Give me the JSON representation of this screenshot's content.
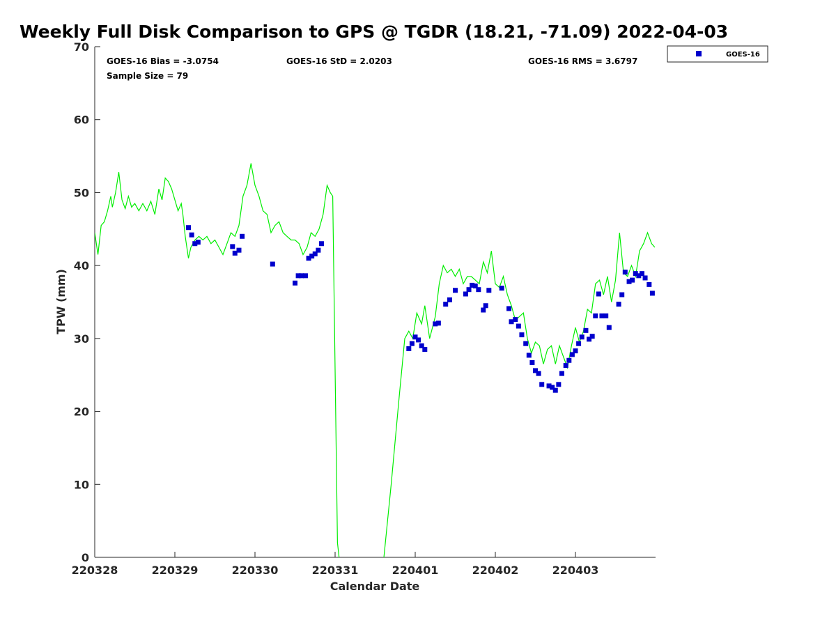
{
  "chart_data": {
    "type": "scatter",
    "title": "Weekly Full Disk Comparison to GPS @ TGDR (18.21, -71.09) 2022-04-03",
    "xlabel": "Calendar Date",
    "ylabel": "TPW (mm)",
    "xlim": [
      0,
      7
    ],
    "ylim": [
      0,
      70
    ],
    "x_unit": "days from 220328 (x=0 at 220328)",
    "x_ticks": [
      {
        "value": 0,
        "label": "220328"
      },
      {
        "value": 1,
        "label": "220329"
      },
      {
        "value": 2,
        "label": "220330"
      },
      {
        "value": 3,
        "label": "220331"
      },
      {
        "value": 4,
        "label": "220401"
      },
      {
        "value": 5,
        "label": "220402"
      },
      {
        "value": 6,
        "label": "220403"
      }
    ],
    "y_ticks": [
      0,
      10,
      20,
      30,
      40,
      50,
      60,
      70
    ],
    "grid": false,
    "legend": {
      "position": "top-right-outside",
      "entries": [
        "GOES-16"
      ]
    },
    "stats": {
      "bias": "GOES-16 Bias = -3.0754",
      "std": "GOES-16 StD = 2.0203",
      "rms": "GOES-16 RMS = 3.6797",
      "sample": "Sample Size = 79"
    },
    "series": [
      {
        "name": "GPS",
        "kind": "line",
        "color": "#00ee00",
        "points": [
          [
            0.0,
            44.5
          ],
          [
            0.04,
            41.5
          ],
          [
            0.08,
            45.5
          ],
          [
            0.12,
            46.0
          ],
          [
            0.16,
            47.5
          ],
          [
            0.2,
            49.5
          ],
          [
            0.22,
            48.0
          ],
          [
            0.26,
            50.0
          ],
          [
            0.3,
            52.8
          ],
          [
            0.34,
            49.0
          ],
          [
            0.38,
            47.8
          ],
          [
            0.42,
            49.5
          ],
          [
            0.46,
            48.0
          ],
          [
            0.5,
            48.5
          ],
          [
            0.55,
            47.5
          ],
          [
            0.6,
            48.5
          ],
          [
            0.65,
            47.5
          ],
          [
            0.7,
            48.8
          ],
          [
            0.75,
            47.0
          ],
          [
            0.8,
            50.5
          ],
          [
            0.84,
            49.0
          ],
          [
            0.88,
            52.0
          ],
          [
            0.92,
            51.5
          ],
          [
            0.96,
            50.5
          ],
          [
            1.0,
            49.0
          ],
          [
            1.04,
            47.5
          ],
          [
            1.08,
            48.5
          ],
          [
            1.1,
            47.0
          ],
          [
            1.13,
            44.0
          ],
          [
            1.17,
            41.0
          ],
          [
            1.2,
            42.5
          ],
          [
            1.25,
            43.5
          ],
          [
            1.3,
            44.0
          ],
          [
            1.35,
            43.5
          ],
          [
            1.4,
            44.0
          ],
          [
            1.45,
            43.0
          ],
          [
            1.5,
            43.5
          ],
          [
            1.55,
            42.5
          ],
          [
            1.6,
            41.5
          ],
          [
            1.65,
            43.0
          ],
          [
            1.7,
            44.5
          ],
          [
            1.75,
            44.0
          ],
          [
            1.8,
            45.5
          ],
          [
            1.85,
            49.5
          ],
          [
            1.9,
            51.0
          ],
          [
            1.95,
            54.0
          ],
          [
            2.0,
            51.0
          ],
          [
            2.05,
            49.5
          ],
          [
            2.1,
            47.5
          ],
          [
            2.15,
            47.0
          ],
          [
            2.2,
            44.5
          ],
          [
            2.25,
            45.5
          ],
          [
            2.3,
            46.0
          ],
          [
            2.35,
            44.5
          ],
          [
            2.4,
            44.0
          ],
          [
            2.45,
            43.5
          ],
          [
            2.5,
            43.5
          ],
          [
            2.55,
            43.0
          ],
          [
            2.6,
            41.5
          ],
          [
            2.65,
            42.5
          ],
          [
            2.7,
            44.5
          ],
          [
            2.75,
            44.0
          ],
          [
            2.8,
            45.0
          ],
          [
            2.85,
            47.0
          ],
          [
            2.9,
            51.0
          ],
          [
            2.94,
            50.0
          ],
          [
            2.97,
            49.5
          ],
          [
            3.03,
            2.0
          ],
          [
            3.06,
            -1.0
          ],
          [
            3.6,
            -1.0
          ],
          [
            3.7,
            10.0
          ],
          [
            3.8,
            22.0
          ],
          [
            3.87,
            30.0
          ],
          [
            3.92,
            31.0
          ],
          [
            3.97,
            30.0
          ],
          [
            4.02,
            33.5
          ],
          [
            4.08,
            32.0
          ],
          [
            4.12,
            34.5
          ],
          [
            4.18,
            30.0
          ],
          [
            4.25,
            33.0
          ],
          [
            4.3,
            37.5
          ],
          [
            4.35,
            40.0
          ],
          [
            4.4,
            39.0
          ],
          [
            4.45,
            39.5
          ],
          [
            4.5,
            38.5
          ],
          [
            4.55,
            39.5
          ],
          [
            4.6,
            37.5
          ],
          [
            4.65,
            38.5
          ],
          [
            4.7,
            38.5
          ],
          [
            4.75,
            38.0
          ],
          [
            4.8,
            37.5
          ],
          [
            4.85,
            40.5
          ],
          [
            4.9,
            39.0
          ],
          [
            4.95,
            42.0
          ],
          [
            5.0,
            37.5
          ],
          [
            5.05,
            37.0
          ],
          [
            5.1,
            38.5
          ],
          [
            5.15,
            36.0
          ],
          [
            5.2,
            34.5
          ],
          [
            5.25,
            32.5
          ],
          [
            5.3,
            33.0
          ],
          [
            5.35,
            33.5
          ],
          [
            5.4,
            30.0
          ],
          [
            5.45,
            28.0
          ],
          [
            5.5,
            29.5
          ],
          [
            5.55,
            29.0
          ],
          [
            5.6,
            26.5
          ],
          [
            5.65,
            28.5
          ],
          [
            5.7,
            29.0
          ],
          [
            5.75,
            26.5
          ],
          [
            5.8,
            29.0
          ],
          [
            5.85,
            27.5
          ],
          [
            5.9,
            26.0
          ],
          [
            5.95,
            29.0
          ],
          [
            6.0,
            31.5
          ],
          [
            6.05,
            29.5
          ],
          [
            6.1,
            31.0
          ],
          [
            6.15,
            34.0
          ],
          [
            6.2,
            33.5
          ],
          [
            6.25,
            37.5
          ],
          [
            6.3,
            38.0
          ],
          [
            6.35,
            36.0
          ],
          [
            6.4,
            38.5
          ],
          [
            6.45,
            35.0
          ],
          [
            6.5,
            38.0
          ],
          [
            6.55,
            44.5
          ],
          [
            6.6,
            39.0
          ],
          [
            6.65,
            38.5
          ],
          [
            6.7,
            40.0
          ],
          [
            6.75,
            38.5
          ],
          [
            6.8,
            42.0
          ],
          [
            6.85,
            43.0
          ],
          [
            6.9,
            44.5
          ],
          [
            6.95,
            43.0
          ],
          [
            6.99,
            42.5
          ]
        ]
      },
      {
        "name": "GOES-16",
        "kind": "scatter",
        "color": "#0000cc",
        "points": [
          [
            1.17,
            45.2
          ],
          [
            1.21,
            44.2
          ],
          [
            1.25,
            43.0
          ],
          [
            1.29,
            43.2
          ],
          [
            1.72,
            42.6
          ],
          [
            1.75,
            41.7
          ],
          [
            1.8,
            42.1
          ],
          [
            1.84,
            44.0
          ],
          [
            2.22,
            40.2
          ],
          [
            2.5,
            37.6
          ],
          [
            2.54,
            38.6
          ],
          [
            2.58,
            38.6
          ],
          [
            2.63,
            38.6
          ],
          [
            2.67,
            41.0
          ],
          [
            2.71,
            41.3
          ],
          [
            2.75,
            41.6
          ],
          [
            2.79,
            42.1
          ],
          [
            2.83,
            43.0
          ],
          [
            3.92,
            28.6
          ],
          [
            3.96,
            29.3
          ],
          [
            4.0,
            30.2
          ],
          [
            4.04,
            29.8
          ],
          [
            4.08,
            29.0
          ],
          [
            4.12,
            28.5
          ],
          [
            4.25,
            32.0
          ],
          [
            4.29,
            32.1
          ],
          [
            4.38,
            34.7
          ],
          [
            4.43,
            35.3
          ],
          [
            4.5,
            36.6
          ],
          [
            4.63,
            36.1
          ],
          [
            4.67,
            36.7
          ],
          [
            4.71,
            37.3
          ],
          [
            4.75,
            37.2
          ],
          [
            4.79,
            36.7
          ],
          [
            4.85,
            33.9
          ],
          [
            4.88,
            34.5
          ],
          [
            4.92,
            36.6
          ],
          [
            5.08,
            36.9
          ],
          [
            5.17,
            34.1
          ],
          [
            5.2,
            32.3
          ],
          [
            5.25,
            32.6
          ],
          [
            5.29,
            31.7
          ],
          [
            5.33,
            30.5
          ],
          [
            5.38,
            29.3
          ],
          [
            5.42,
            27.7
          ],
          [
            5.46,
            26.7
          ],
          [
            5.5,
            25.6
          ],
          [
            5.54,
            25.2
          ],
          [
            5.58,
            23.7
          ],
          [
            5.67,
            23.5
          ],
          [
            5.71,
            23.3
          ],
          [
            5.75,
            22.9
          ],
          [
            5.79,
            23.7
          ],
          [
            5.83,
            25.2
          ],
          [
            5.88,
            26.3
          ],
          [
            5.92,
            27.0
          ],
          [
            5.96,
            27.8
          ],
          [
            6.0,
            28.3
          ],
          [
            6.04,
            29.3
          ],
          [
            6.08,
            30.2
          ],
          [
            6.13,
            31.1
          ],
          [
            6.17,
            29.9
          ],
          [
            6.21,
            30.3
          ],
          [
            6.25,
            33.1
          ],
          [
            6.29,
            36.1
          ],
          [
            6.33,
            33.1
          ],
          [
            6.38,
            33.1
          ],
          [
            6.42,
            31.5
          ],
          [
            6.54,
            34.7
          ],
          [
            6.58,
            36.0
          ],
          [
            6.62,
            39.1
          ],
          [
            6.67,
            37.8
          ],
          [
            6.71,
            38.0
          ],
          [
            6.75,
            38.9
          ],
          [
            6.79,
            38.6
          ],
          [
            6.83,
            38.9
          ],
          [
            6.87,
            38.3
          ],
          [
            6.92,
            37.4
          ],
          [
            6.96,
            36.2
          ]
        ]
      }
    ]
  }
}
